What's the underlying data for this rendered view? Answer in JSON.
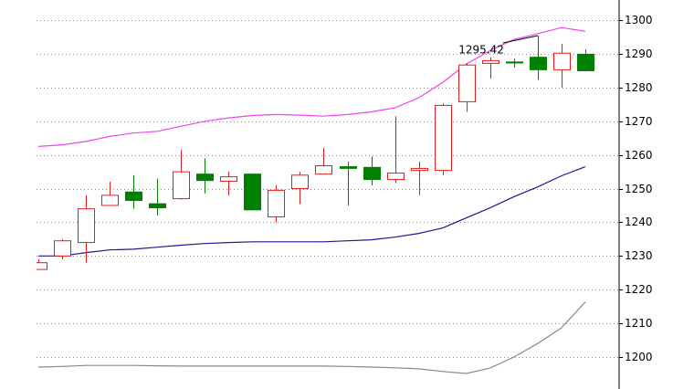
{
  "chart_data": {
    "type": "candlestick",
    "open": [
      1226,
      1230,
      1234,
      1245,
      1249,
      1245.5,
      1247,
      1254.3,
      1252.2,
      1254.3,
      1241.6,
      1250,
      1254.3,
      1256.5,
      1256.3,
      1252.7,
      1255.4,
      1255.4,
      1275.8,
      1287.2,
      1287.6,
      1289,
      1285.3,
      1289.9
    ],
    "high": [
      1229,
      1235,
      1248,
      1252,
      1254,
      1253,
      1261.5,
      1259,
      1255,
      1254.3,
      1251,
      1255,
      1262,
      1258,
      1259.5,
      1271.5,
      1258,
      1275.3,
      1287.3,
      1289,
      1288.6,
      1295.42,
      1293,
      1291.3
    ],
    "low": [
      1226,
      1229,
      1228,
      1245,
      1244,
      1242,
      1246.7,
      1248.6,
      1248,
      1243.5,
      1240,
      1245.4,
      1254.3,
      1245,
      1251,
      1251.6,
      1248,
      1254,
      1272.8,
      1282.6,
      1285.9,
      1282.3,
      1280,
      1285
    ],
    "close": [
      1228,
      1234.5,
      1244,
      1248,
      1246.5,
      1244.3,
      1255,
      1252.4,
      1253.5,
      1243.7,
      1249.5,
      1254,
      1256.8,
      1256,
      1252.7,
      1254.6,
      1256,
      1274.7,
      1286.7,
      1288,
      1287.3,
      1285.3,
      1290.2,
      1285
    ],
    "up_color": "#e8191a",
    "down_color": "#007f00",
    "lines": [
      {
        "color": "#ee44ee",
        "values": [
          1262.5,
          1263,
          1264,
          1265.5,
          1266.5,
          1267,
          1268.5,
          1270,
          1271,
          1271.7,
          1272,
          1271.8,
          1271.5,
          1272,
          1272.8,
          1274,
          1277,
          1281.5,
          1287,
          1291,
          1294.3,
          1296,
          1297.8,
          1296.7
        ]
      },
      {
        "color": "#1a1a8c",
        "values": [
          1230,
          1230,
          1231,
          1231.8,
          1232,
          1232.6,
          1233.2,
          1233.7,
          1234,
          1234.2,
          1234.2,
          1234.2,
          1234.2,
          1234.5,
          1234.8,
          1235.6,
          1236.7,
          1238.3,
          1241.3,
          1244.3,
          1247.6,
          1250.5,
          1253.8,
          1256.5
        ]
      },
      {
        "color": "#888888",
        "values": [
          1197,
          1197.2,
          1197.5,
          1197.5,
          1197.5,
          1197.4,
          1197.3,
          1197.3,
          1197.3,
          1197.3,
          1197.3,
          1197.3,
          1197.3,
          1197.2,
          1197,
          1196.8,
          1196.5,
          1195.7,
          1195.1,
          1196.7,
          1200,
          1204,
          1208.7,
          1216.3
        ]
      }
    ],
    "ylim": [
      1190.5,
      1306
    ],
    "yticks": [
      1200,
      1210,
      1220,
      1230,
      1240,
      1250,
      1260,
      1270,
      1280,
      1290,
      1300
    ],
    "grid": true
  }
}
